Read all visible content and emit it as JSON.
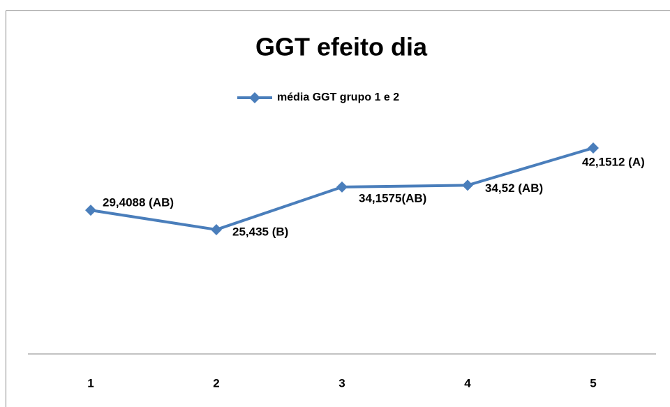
{
  "chart_data": {
    "type": "line",
    "title": "GGT efeito dia",
    "categories": [
      "1",
      "2",
      "3",
      "4",
      "5"
    ],
    "series": [
      {
        "name": "média GGT grupo 1 e 2",
        "color": "#4a7ebb",
        "values": [
          29.4088,
          25.435,
          34.1575,
          34.52,
          42.1512
        ],
        "value_labels": [
          "29,4088 (AB)",
          "25,435 (B)",
          "34,1575(AB)",
          "34,52 (AB)",
          "42,1512 (A)"
        ]
      }
    ],
    "ylim": [
      0,
      50
    ],
    "legend": "top"
  }
}
